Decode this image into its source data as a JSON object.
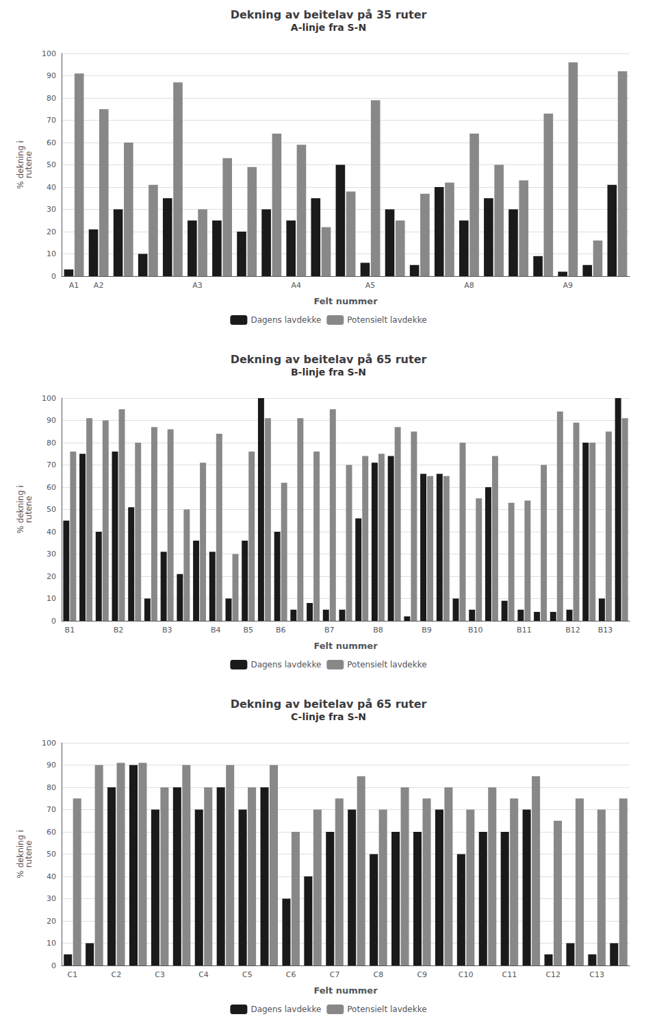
{
  "chart_data": [
    {
      "type": "bar",
      "title": "Dekning av beitelav på 35 ruter",
      "subtitle": "A-linje fra S-N",
      "x_label": "Felt nummer",
      "y_label": "% dekning i\nrutene",
      "categories": [
        "A1",
        "A2",
        null,
        null,
        null,
        "A3",
        null,
        null,
        null,
        "A4",
        null,
        null,
        "A5",
        null,
        null,
        null,
        "A8",
        null,
        null,
        null,
        "A9",
        null,
        null
      ],
      "series": [
        {
          "name": "Dagens lavdekke",
          "color": "#1a1a1a",
          "values": [
            3,
            21,
            30,
            10,
            35,
            25,
            25,
            20,
            30,
            25,
            35,
            50,
            6,
            30,
            5,
            40,
            25,
            35,
            30,
            9,
            2,
            5,
            41
          ]
        },
        {
          "name": "Potensielt lavdekke",
          "color": "#888888",
          "values": [
            91,
            75,
            60,
            41,
            87,
            30,
            53,
            49,
            64,
            59,
            22,
            38,
            79,
            25,
            37,
            42,
            64,
            50,
            43,
            73,
            96,
            16,
            92
          ]
        }
      ],
      "ylim": [
        0,
        100
      ],
      "yticks": [
        0,
        10,
        20,
        30,
        40,
        50,
        60,
        70,
        80,
        90,
        100
      ],
      "grid": true,
      "legend": "bottom"
    },
    {
      "type": "bar",
      "title": "Dekning av beitelav på 65 ruter",
      "subtitle": "B-linje fra S-N",
      "x_label": "Felt nummer",
      "y_label": "% dekning i\nrutene",
      "categories": [
        "B1",
        null,
        null,
        "B2",
        null,
        null,
        "B3",
        null,
        null,
        "B4",
        null,
        "B5",
        null,
        "B6",
        null,
        null,
        "B7",
        null,
        null,
        "B8",
        null,
        null,
        "B9",
        null,
        null,
        "B10",
        null,
        null,
        "B11",
        null,
        null,
        "B12",
        null,
        "B13",
        null
      ],
      "series": [
        {
          "name": "Dagens lavdekke",
          "color": "#1a1a1a",
          "values": [
            45,
            75,
            40,
            76,
            51,
            10,
            31,
            21,
            36,
            31,
            10,
            36,
            100,
            40,
            5,
            8,
            5,
            5,
            46,
            71,
            74,
            2,
            66,
            66,
            10,
            5,
            60,
            9,
            5,
            4,
            4,
            5,
            80,
            10,
            100
          ]
        },
        {
          "name": "Potensielt lavdekke",
          "color": "#888888",
          "values": [
            76,
            91,
            90,
            95,
            80,
            87,
            86,
            50,
            71,
            84,
            30,
            76,
            91,
            62,
            91,
            76,
            95,
            70,
            74,
            75,
            87,
            85,
            65,
            65,
            80,
            55,
            74,
            53,
            54,
            70,
            94,
            89,
            80,
            85,
            91
          ]
        }
      ],
      "ylim": [
        0,
        100
      ],
      "yticks": [
        0,
        10,
        20,
        30,
        40,
        50,
        60,
        70,
        80,
        90,
        100
      ],
      "grid": true,
      "legend": "bottom"
    },
    {
      "type": "bar",
      "title": "Dekning av beitelav på 65 ruter",
      "subtitle": "C-linje fra S-N",
      "x_label": "Felt nummer",
      "y_label": "% dekning i\nrutene",
      "categories": [
        "C1",
        null,
        "C2",
        null,
        "C3",
        null,
        "C4",
        null,
        "C5",
        null,
        "C6",
        null,
        "C7",
        null,
        "C8",
        null,
        "C9",
        null,
        "C10",
        null,
        "C11",
        null,
        "C12",
        null,
        "C13",
        null
      ],
      "series": [
        {
          "name": "Dagens lavdekke",
          "color": "#1a1a1a",
          "values": [
            5,
            10,
            80,
            90,
            70,
            80,
            70,
            80,
            70,
            80,
            30,
            40,
            60,
            70,
            50,
            60,
            60,
            70,
            50,
            60,
            60,
            70,
            5,
            10,
            5,
            10
          ]
        },
        {
          "name": "Potensielt lavdekke",
          "color": "#888888",
          "values": [
            75,
            90,
            91,
            91,
            80,
            90,
            80,
            90,
            80,
            90,
            60,
            70,
            75,
            85,
            70,
            80,
            75,
            80,
            70,
            80,
            75,
            85,
            65,
            75,
            70,
            75
          ]
        }
      ],
      "ylim": [
        0,
        100
      ],
      "yticks": [
        0,
        10,
        20,
        30,
        40,
        50,
        60,
        70,
        80,
        90,
        100
      ],
      "grid": true,
      "legend": "bottom"
    }
  ]
}
